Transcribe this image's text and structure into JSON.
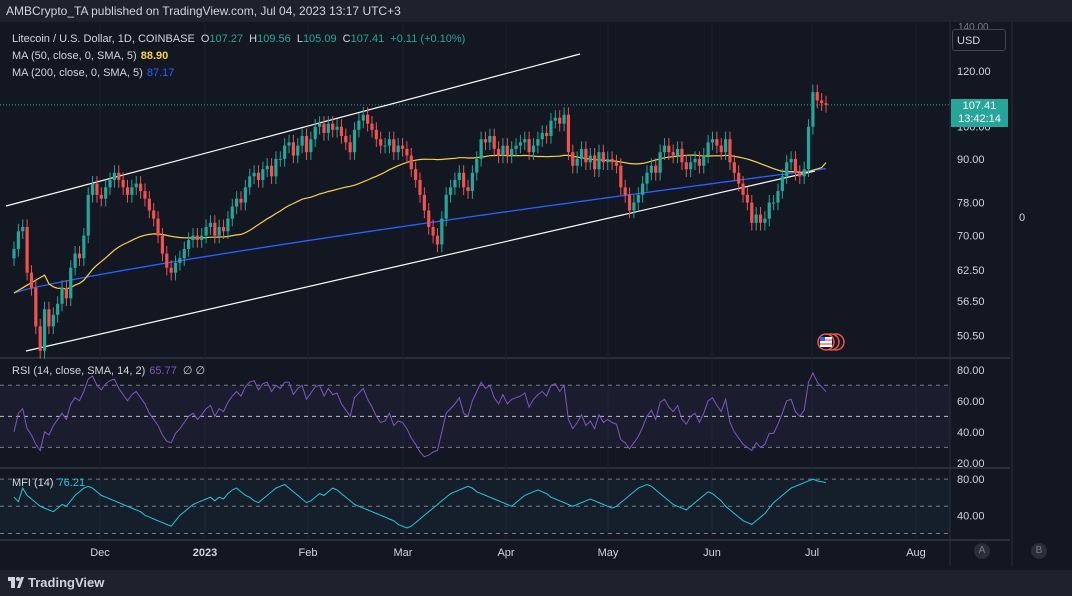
{
  "header": {
    "published_text": "AMBCrypto_TA published on TradingView.com, Jul 04, 2023 13:17 UTC+3"
  },
  "legend": {
    "symbol": "Litecoin / U.S. Dollar, 1D, COINBASE",
    "o_label": "O",
    "o_value": "107.27",
    "h_label": "H",
    "h_value": "109.56",
    "l_label": "L",
    "l_value": "105.09",
    "c_label": "C",
    "c_value": "107.41",
    "change": "+0.11 (+0.10%)",
    "ma50_label": "MA (50, close, 0, SMA, 5)",
    "ma50_value": "88.90",
    "ma200_label": "MA (200, close, 0, SMA, 5)",
    "ma200_value": "87.17"
  },
  "indicators": {
    "rsi_label": "RSI (14, close, SMA, 14, 2)",
    "rsi_value": "65.77",
    "rsi_extra": "∅ ∅",
    "mfi_label": "MFI (14)",
    "mfi_value": "76.21"
  },
  "price_axis": {
    "currency": "USD",
    "last_price": "107.41",
    "countdown": "13:42:14",
    "top_tick": "140.00",
    "zero_label": "0"
  },
  "footer": {
    "brand": "TradingView",
    "btn_a": "A",
    "btn_b": "B"
  },
  "colors": {
    "background": "#131722",
    "up": "#26a69a",
    "down": "#ef5350",
    "ma50": "#f7d04c",
    "ma200": "#2962ff",
    "rsi": "#7e57c2",
    "mfi": "#26c6da",
    "channel": "#ffffff"
  },
  "chart_data": [
    {
      "type": "candlestick",
      "title": "Litecoin / U.S. Dollar, 1D, COINBASE",
      "scale": "log",
      "x_ticks": [
        "Dec",
        "2023",
        "Feb",
        "Mar",
        "Apr",
        "May",
        "Jun",
        "Jul",
        "Aug"
      ],
      "y_ticks": [
        120,
        100,
        90,
        78,
        70,
        62.5,
        56.5,
        50.5
      ],
      "ylim": [
        47.5,
        140
      ],
      "closes": [
        67,
        71,
        72,
        62,
        59,
        52,
        48,
        55,
        52,
        54,
        56,
        59,
        57,
        63,
        66,
        65,
        70,
        80,
        83,
        80,
        79,
        82,
        84,
        86,
        84,
        82,
        80,
        82,
        83,
        81,
        79,
        76,
        74,
        70,
        66,
        63,
        62,
        64,
        65,
        67,
        69,
        70,
        69,
        70,
        72,
        73,
        70,
        72,
        71,
        74,
        77,
        79,
        78,
        82,
        85,
        86,
        84,
        87,
        88,
        85,
        90,
        90,
        94,
        95,
        91,
        94,
        97,
        92,
        96,
        100,
        101,
        98,
        101,
        99,
        100,
        97,
        95,
        92,
        99,
        102,
        104,
        101,
        99,
        96,
        94,
        94,
        96,
        92,
        94,
        93,
        91,
        87,
        84,
        80,
        76,
        72,
        70,
        68,
        74,
        80,
        82,
        84,
        86,
        82,
        81,
        86,
        90,
        96,
        95,
        97,
        93,
        91,
        94,
        91,
        93,
        94,
        95,
        96,
        92,
        94,
        96,
        98,
        97,
        102,
        103,
        101,
        104,
        92,
        88,
        90,
        93,
        89,
        91,
        87,
        92,
        89,
        90,
        89,
        88,
        82,
        80,
        76,
        78,
        80,
        83,
        86,
        88,
        86,
        92,
        94,
        92,
        91,
        93,
        89,
        87,
        89,
        90,
        88,
        91,
        95,
        96,
        94,
        92,
        96,
        89,
        86,
        83,
        80,
        78,
        73,
        75,
        73,
        74,
        78,
        78,
        81,
        85,
        89,
        90,
        86,
        85,
        87,
        100,
        112,
        109,
        108,
        107.41
      ],
      "series": [
        {
          "name": "MA (50, close, 0, SMA, 5)",
          "last": 88.9
        },
        {
          "name": "MA (200, close, 0, SMA, 5)",
          "last": 87.17
        }
      ]
    },
    {
      "type": "line",
      "title": "RSI (14, close, SMA, 14, 2)",
      "y_ticks": [
        80,
        60,
        40,
        20
      ],
      "ylim": [
        18,
        85
      ],
      "bands": [
        70,
        50,
        30
      ],
      "last": 65.77,
      "series": [
        {
          "name": "RSI (14, close, SMA, 14, 2)",
          "values": [
            40,
            52,
            55,
            42,
            38,
            32,
            28,
            40,
            38,
            44,
            48,
            52,
            48,
            58,
            62,
            60,
            66,
            74,
            76,
            70,
            67,
            71,
            73,
            74,
            68,
            64,
            60,
            64,
            66,
            62,
            58,
            52,
            48,
            44,
            38,
            34,
            33,
            39,
            42,
            46,
            50,
            52,
            48,
            51,
            55,
            57,
            50,
            55,
            53,
            59,
            63,
            66,
            63,
            69,
            72,
            73,
            67,
            71,
            72,
            66,
            70,
            68,
            72,
            72,
            64,
            68,
            70,
            61,
            65,
            69,
            70,
            63,
            68,
            64,
            65,
            58,
            54,
            50,
            62,
            65,
            68,
            61,
            56,
            50,
            46,
            47,
            52,
            44,
            47,
            46,
            42,
            36,
            32,
            27,
            24,
            25,
            27,
            28,
            40,
            52,
            55,
            58,
            62,
            52,
            50,
            60,
            66,
            72,
            68,
            70,
            62,
            58,
            64,
            58,
            61,
            62,
            63,
            65,
            56,
            61,
            64,
            66,
            63,
            70,
            71,
            66,
            70,
            48,
            42,
            46,
            51,
            44,
            47,
            42,
            51,
            46,
            48,
            46,
            45,
            35,
            33,
            29,
            33,
            37,
            43,
            50,
            54,
            48,
            59,
            61,
            56,
            53,
            57,
            48,
            45,
            50,
            52,
            46,
            52,
            60,
            62,
            57,
            53,
            61,
            46,
            40,
            36,
            32,
            30,
            28,
            33,
            30,
            32,
            39,
            39,
            45,
            52,
            60,
            61,
            53,
            50,
            54,
            72,
            78,
            72,
            69,
            65.77
          ]
        }
      ]
    },
    {
      "type": "line",
      "title": "MFI (14)",
      "y_ticks": [
        80,
        40
      ],
      "ylim": [
        15,
        90
      ],
      "bands": [
        80,
        50,
        20
      ],
      "last": 76.21,
      "series": [
        {
          "name": "MFI (14)",
          "values": [
            60,
            55,
            70,
            62,
            58,
            54,
            50,
            48,
            46,
            44,
            48,
            52,
            50,
            56,
            62,
            66,
            70,
            72,
            70,
            66,
            62,
            60,
            58,
            56,
            54,
            52,
            50,
            48,
            46,
            44,
            40,
            38,
            36,
            34,
            32,
            30,
            28,
            34,
            40,
            44,
            48,
            52,
            54,
            56,
            58,
            60,
            56,
            60,
            58,
            64,
            68,
            70,
            66,
            62,
            60,
            56,
            54,
            58,
            62,
            66,
            70,
            72,
            74,
            70,
            66,
            62,
            58,
            54,
            56,
            60,
            64,
            62,
            66,
            70,
            68,
            64,
            60,
            56,
            52,
            50,
            48,
            46,
            44,
            42,
            40,
            38,
            36,
            34,
            30,
            28,
            26,
            28,
            32,
            36,
            40,
            44,
            48,
            52,
            56,
            60,
            64,
            66,
            68,
            70,
            72,
            70,
            66,
            64,
            62,
            60,
            58,
            56,
            54,
            52,
            50,
            54,
            58,
            62,
            64,
            66,
            68,
            66,
            64,
            60,
            58,
            56,
            54,
            52,
            50,
            52,
            54,
            56,
            58,
            56,
            54,
            52,
            50,
            48,
            50,
            54,
            58,
            62,
            66,
            70,
            72,
            74,
            72,
            68,
            64,
            60,
            56,
            52,
            50,
            48,
            46,
            50,
            54,
            58,
            62,
            66,
            64,
            60,
            56,
            50,
            46,
            42,
            38,
            34,
            32,
            30,
            34,
            38,
            42,
            48,
            54,
            58,
            62,
            66,
            70,
            72,
            74,
            76,
            78,
            80,
            78,
            77,
            76.21
          ]
        }
      ]
    }
  ]
}
